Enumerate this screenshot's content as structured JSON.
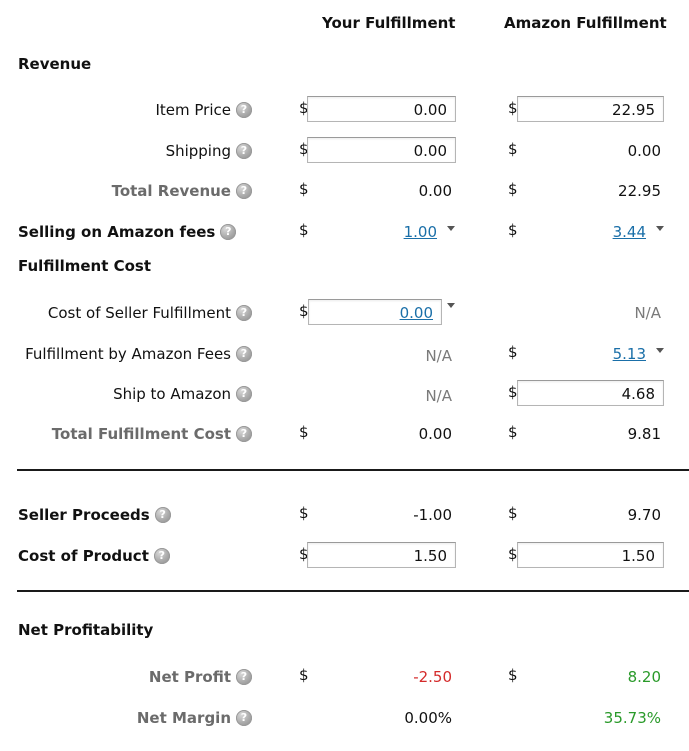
{
  "headers": {
    "your": "Your Fulfillment",
    "amazon": "Amazon Fulfillment"
  },
  "currency": "$",
  "help_glyph": "?",
  "sections": {
    "revenue": "Revenue",
    "fulfillment_cost": "Fulfillment Cost",
    "net_profitability": "Net Profitability"
  },
  "rows": {
    "item_price": {
      "label": "Item Price",
      "your": "0.00",
      "amazon": "22.95"
    },
    "shipping": {
      "label": "Shipping",
      "your": "0.00",
      "amazon": "0.00"
    },
    "total_revenue": {
      "label": "Total Revenue",
      "your": "0.00",
      "amazon": "22.95"
    },
    "selling_fees": {
      "label": "Selling on Amazon fees",
      "your": "1.00",
      "amazon": "3.44"
    },
    "seller_fulfillment_cost": {
      "label": "Cost of Seller Fulfillment",
      "your": "0.00",
      "amazon": "N/A"
    },
    "fba_fees": {
      "label": "Fulfillment by Amazon Fees",
      "your": "N/A",
      "amazon": "5.13"
    },
    "ship_to_amazon": {
      "label": "Ship to Amazon",
      "your": "N/A",
      "amazon": "4.68"
    },
    "total_fulfillment_cost": {
      "label": "Total Fulfillment Cost",
      "your": "0.00",
      "amazon": "9.81"
    },
    "seller_proceeds": {
      "label": "Seller Proceeds",
      "your": "-1.00",
      "amazon": "9.70"
    },
    "cost_of_product": {
      "label": "Cost of Product",
      "your": "1.50",
      "amazon": "1.50"
    },
    "net_profit": {
      "label": "Net Profit",
      "your": "-2.50",
      "amazon": "8.20"
    },
    "net_margin": {
      "label": "Net Margin",
      "your": "0.00%",
      "amazon": "35.73%"
    }
  },
  "colors": {
    "negative": "#d42a2a",
    "positive": "#2a9a2a",
    "link": "#1a6fa8",
    "muted_label": "#6b6b6b"
  }
}
